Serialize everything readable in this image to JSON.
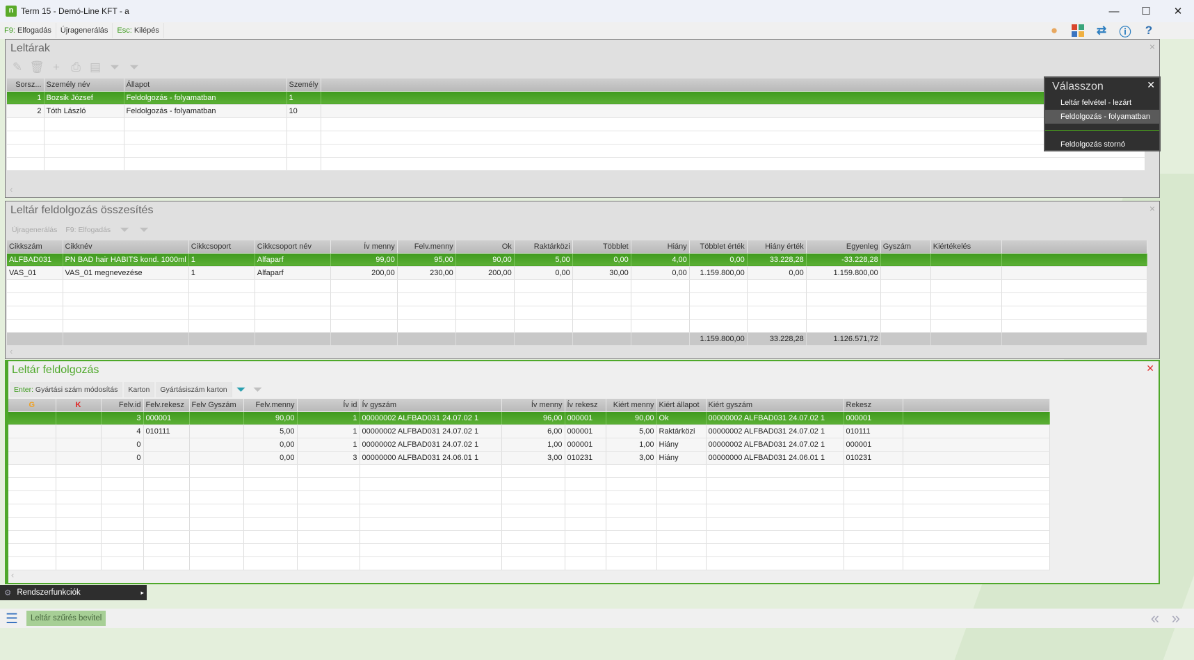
{
  "window": {
    "title": "Term 15 - Demó-Line KFT - a",
    "logo": "n",
    "minimize": "—",
    "maximize": "☐",
    "close": "✕"
  },
  "commands": [
    {
      "key": "F9:",
      "label": " Elfogadás"
    },
    {
      "key": "",
      "label": "Újragenerálás"
    },
    {
      "key": "Esc:",
      "label": " Kilépés"
    }
  ],
  "top_icons": [
    "user-icon",
    "apps-icon",
    "swap-icon",
    "info-icon",
    "help-icon"
  ],
  "panel1": {
    "title": "Leltárak",
    "close": "×",
    "columns": [
      "Sorsz...",
      "Személy név",
      "Állapot",
      "Személy"
    ],
    "rows": [
      [
        "1",
        "Bozsik József",
        "Feldolgozás - folyamatban",
        "1"
      ],
      [
        "2",
        "Tóth László",
        "Feldolgozás - folyamatban",
        "10"
      ]
    ]
  },
  "popup": {
    "title": "Válasszon",
    "close": "✕",
    "items": [
      "Leltár felvétel - lezárt",
      "Feldolgozás - folyamatban",
      "Feldolgozás stornó"
    ]
  },
  "panel2": {
    "title": "Leltár feldolgozás összesítés",
    "close": "×",
    "tools": [
      "Újragenerálás",
      "F9: Elfogadás"
    ],
    "columns": [
      "Cikkszám",
      "Cikknév",
      "Cikkcsoport",
      "Cikkcsoport név",
      "Ív menny",
      "Felv.menny",
      "Ok",
      "Raktárközi",
      "Többlet",
      "Hiány",
      "Többlet érték",
      "Hiány érték",
      "Egyenleg",
      "Gyszám",
      "Kiértékelés"
    ],
    "rows": [
      [
        "ALFBAD031",
        "PN BAD hair HABITS kond. 1000ml",
        "1",
        "Alfaparf",
        "99,00",
        "95,00",
        "90,00",
        "5,00",
        "0,00",
        "4,00",
        "0,00",
        "33.228,28",
        "-33.228,28",
        "",
        ""
      ],
      [
        "VAS_01",
        "VAS_01 megnevezése",
        "1",
        "Alfaparf",
        "200,00",
        "230,00",
        "200,00",
        "0,00",
        "30,00",
        "0,00",
        "1.159.800,00",
        "0,00",
        "1.159.800,00",
        "",
        ""
      ]
    ],
    "totals": [
      "",
      "",
      "",
      "",
      "",
      "",
      "",
      "",
      "",
      "",
      "1.159.800,00",
      "33.228,28",
      "1.126.571,72",
      "",
      ""
    ]
  },
  "panel3": {
    "title": "Leltár feldolgozás",
    "close": "✕",
    "tools": [
      {
        "key": "Enter:",
        "label": " Gyártási szám módosítás"
      },
      {
        "key": "",
        "label": "Karton"
      },
      {
        "key": "",
        "label": "Gyártásiszám karton"
      }
    ],
    "columns": [
      "G",
      "K",
      "Felv.id",
      "Felv.rekesz",
      "Felv Gyszám",
      "Felv.menny",
      "Ív id",
      "Ív gyszám",
      "Ív menny",
      "Ív rekesz",
      "Kiért menny",
      "Kiért állapot",
      "Kiért gyszám",
      "Rekesz"
    ],
    "rows": [
      [
        "",
        "",
        "3",
        "000001",
        "",
        "90,00",
        "1",
        "00000002 ALFBAD031 24.07.02 1",
        "96,00",
        "000001",
        "90,00",
        "Ok",
        "00000002 ALFBAD031 24.07.02 1",
        "000001"
      ],
      [
        "",
        "",
        "4",
        "010111",
        "",
        "5,00",
        "1",
        "00000002 ALFBAD031 24.07.02 1",
        "6,00",
        "000001",
        "5,00",
        "Raktárközi",
        "00000002 ALFBAD031 24.07.02 1",
        "010111"
      ],
      [
        "",
        "",
        "0",
        "",
        "",
        "0,00",
        "1",
        "00000002 ALFBAD031 24.07.02 1",
        "1,00",
        "000001",
        "1,00",
        "Hiány",
        "00000002 ALFBAD031 24.07.02 1",
        "000001"
      ],
      [
        "",
        "",
        "0",
        "",
        "",
        "0,00",
        "3",
        "00000000 ALFBAD031 24.06.01 1",
        "3,00",
        "010231",
        "3,00",
        "Hiány",
        "00000000 ALFBAD031 24.06.01 1",
        "010231"
      ]
    ]
  },
  "system_menu": {
    "label": "Rendszerfunkciók",
    "arrow": "▸"
  },
  "bottom": {
    "filter_button": "Leltár szűrés bevitel",
    "prev": "«",
    "next": "»"
  },
  "colors": {
    "accent": "#4ea82a",
    "selected_row": "#4a9f24",
    "popup_bg": "#303030"
  }
}
